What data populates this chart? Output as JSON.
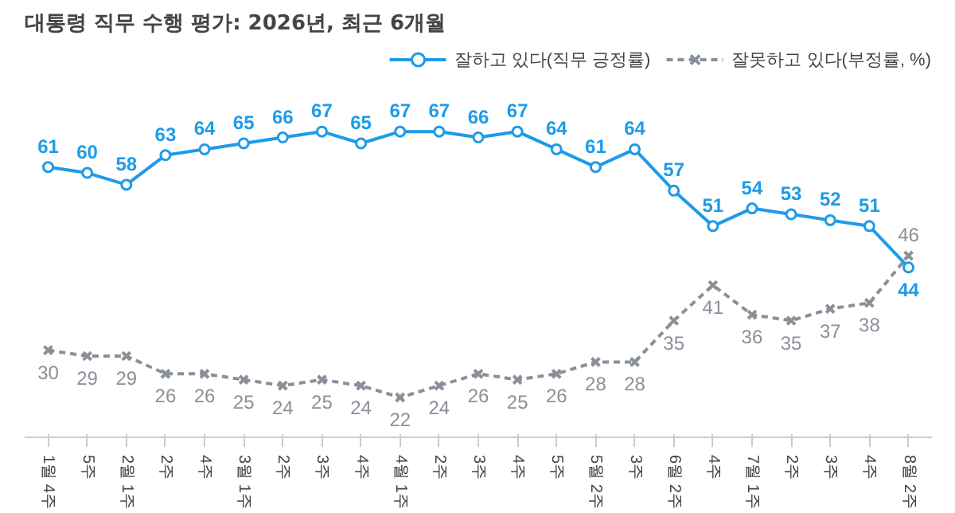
{
  "chart_data": {
    "type": "line",
    "title": "대통령 직무 수행 평가: 2026년, 최근 6개월",
    "categories": [
      "1월 4주",
      "5주",
      "2월 1주",
      "2주",
      "4주",
      "3월 1주",
      "2주",
      "3주",
      "4주",
      "4월 1주",
      "2주",
      "3주",
      "4주",
      "5주",
      "5월 2주",
      "3주",
      "6월 2주",
      "4주",
      "7월 1주",
      "2주",
      "3주",
      "4주",
      "8월 2주"
    ],
    "series": [
      {
        "name": "잘하고 있다(직무 긍정률)",
        "color": "#1e9be8",
        "marker": "circle",
        "line_style": "solid",
        "values": [
          61,
          60,
          58,
          63,
          64,
          65,
          66,
          67,
          65,
          67,
          67,
          66,
          67,
          64,
          61,
          64,
          57,
          51,
          54,
          53,
          52,
          51,
          44
        ]
      },
      {
        "name": "잘못하고 있다(부정률, %)",
        "color": "#8a9099",
        "marker": "cross",
        "line_style": "dashed",
        "values": [
          30,
          29,
          29,
          26,
          26,
          25,
          24,
          25,
          24,
          22,
          24,
          26,
          25,
          26,
          28,
          28,
          35,
          41,
          36,
          35,
          37,
          38,
          46
        ]
      }
    ],
    "data_labels": true,
    "legend": "top right",
    "grid": false
  }
}
